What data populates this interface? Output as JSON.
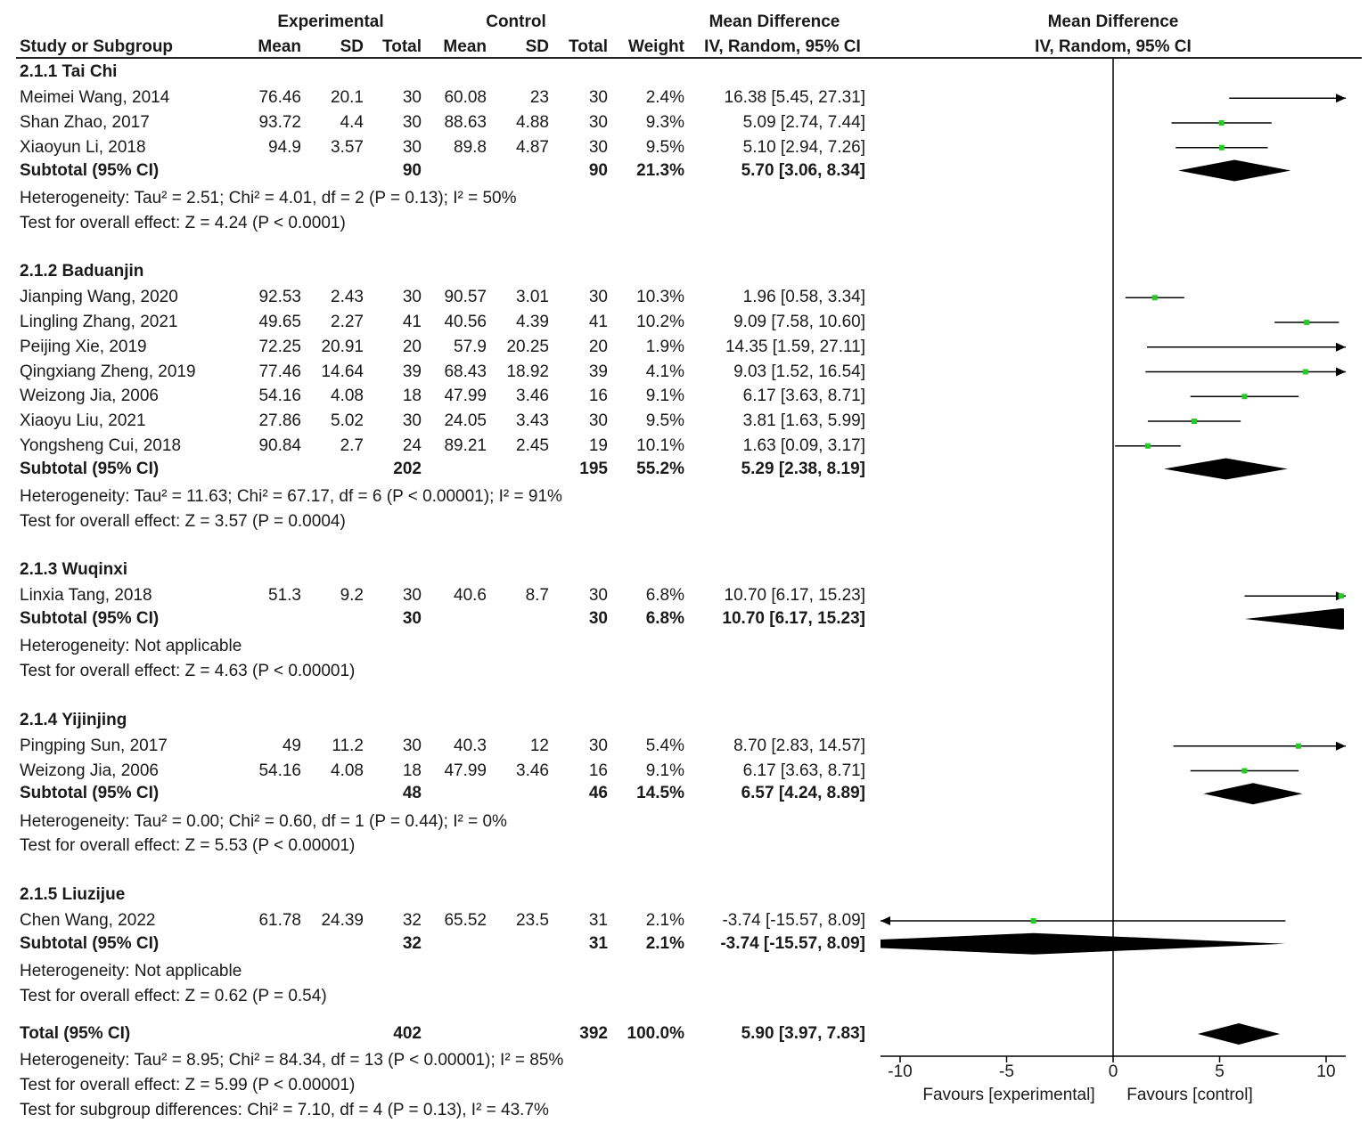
{
  "header": {
    "experimental": "Experimental",
    "control": "Control",
    "md_col": "Mean Difference",
    "md_method": "IV, Random, 95% CI",
    "plot_title": "Mean Difference",
    "plot_method": "IV, Random, 95% CI",
    "study_col": "Study or Subgroup",
    "mean": "Mean",
    "sd": "SD",
    "total": "Total",
    "weight": "Weight"
  },
  "groups": [
    {
      "title": "2.1.1 Tai Chi",
      "studies": [
        {
          "name": "Meimei Wang, 2014",
          "e_mean": "76.46",
          "e_sd": "20.1",
          "e_total": "30",
          "c_mean": "60.08",
          "c_sd": "23",
          "c_total": "30",
          "weight": "2.4%",
          "ci": "16.38 [5.45, 27.31]",
          "md": 16.38,
          "lo": 5.45,
          "hi": 27.31
        },
        {
          "name": "Shan Zhao, 2017",
          "e_mean": "93.72",
          "e_sd": "4.4",
          "e_total": "30",
          "c_mean": "88.63",
          "c_sd": "4.88",
          "c_total": "30",
          "weight": "9.3%",
          "ci": "5.09 [2.74, 7.44]",
          "md": 5.09,
          "lo": 2.74,
          "hi": 7.44
        },
        {
          "name": "Xiaoyun Li, 2018",
          "e_mean": "94.9",
          "e_sd": "3.57",
          "e_total": "30",
          "c_mean": "89.8",
          "c_sd": "4.87",
          "c_total": "30",
          "weight": "9.5%",
          "ci": "5.10 [2.94, 7.26]",
          "md": 5.1,
          "lo": 2.94,
          "hi": 7.26
        }
      ],
      "subtotal": {
        "label": "Subtotal (95% CI)",
        "e_total": "90",
        "c_total": "90",
        "weight": "21.3%",
        "ci": "5.70 [3.06, 8.34]",
        "md": 5.7,
        "lo": 3.06,
        "hi": 8.34
      },
      "heterogeneity": "Heterogeneity: Tau² = 2.51; Chi² = 4.01, df = 2 (P = 0.13); I² = 50%",
      "overall": "Test for overall effect: Z = 4.24 (P < 0.0001)"
    },
    {
      "title": "2.1.2 Baduanjin",
      "studies": [
        {
          "name": "Jianping Wang, 2020",
          "e_mean": "92.53",
          "e_sd": "2.43",
          "e_total": "30",
          "c_mean": "90.57",
          "c_sd": "3.01",
          "c_total": "30",
          "weight": "10.3%",
          "ci": "1.96 [0.58, 3.34]",
          "md": 1.96,
          "lo": 0.58,
          "hi": 3.34
        },
        {
          "name": "Lingling Zhang, 2021",
          "e_mean": "49.65",
          "e_sd": "2.27",
          "e_total": "41",
          "c_mean": "40.56",
          "c_sd": "4.39",
          "c_total": "41",
          "weight": "10.2%",
          "ci": "9.09 [7.58, 10.60]",
          "md": 9.09,
          "lo": 7.58,
          "hi": 10.6
        },
        {
          "name": "Peijing Xie, 2019",
          "e_mean": "72.25",
          "e_sd": "20.91",
          "e_total": "20",
          "c_mean": "57.9",
          "c_sd": "20.25",
          "c_total": "20",
          "weight": "1.9%",
          "ci": "14.35 [1.59, 27.11]",
          "md": 14.35,
          "lo": 1.59,
          "hi": 27.11
        },
        {
          "name": "Qingxiang Zheng, 2019",
          "e_mean": "77.46",
          "e_sd": "14.64",
          "e_total": "39",
          "c_mean": "68.43",
          "c_sd": "18.92",
          "c_total": "39",
          "weight": "4.1%",
          "ci": "9.03 [1.52, 16.54]",
          "md": 9.03,
          "lo": 1.52,
          "hi": 16.54
        },
        {
          "name": "Weizong Jia, 2006",
          "e_mean": "54.16",
          "e_sd": "4.08",
          "e_total": "18",
          "c_mean": "47.99",
          "c_sd": "3.46",
          "c_total": "16",
          "weight": "9.1%",
          "ci": "6.17 [3.63, 8.71]",
          "md": 6.17,
          "lo": 3.63,
          "hi": 8.71
        },
        {
          "name": "Xiaoyu Liu, 2021",
          "e_mean": "27.86",
          "e_sd": "5.02",
          "e_total": "30",
          "c_mean": "24.05",
          "c_sd": "3.43",
          "c_total": "30",
          "weight": "9.5%",
          "ci": "3.81 [1.63, 5.99]",
          "md": 3.81,
          "lo": 1.63,
          "hi": 5.99
        },
        {
          "name": "Yongsheng Cui, 2018",
          "e_mean": "90.84",
          "e_sd": "2.7",
          "e_total": "24",
          "c_mean": "89.21",
          "c_sd": "2.45",
          "c_total": "19",
          "weight": "10.1%",
          "ci": "1.63 [0.09, 3.17]",
          "md": 1.63,
          "lo": 0.09,
          "hi": 3.17
        }
      ],
      "subtotal": {
        "label": "Subtotal (95% CI)",
        "e_total": "202",
        "c_total": "195",
        "weight": "55.2%",
        "ci": "5.29 [2.38, 8.19]",
        "md": 5.29,
        "lo": 2.38,
        "hi": 8.19
      },
      "heterogeneity": "Heterogeneity: Tau² = 11.63; Chi² = 67.17, df = 6 (P < 0.00001); I² = 91%",
      "overall": "Test for overall effect: Z = 3.57 (P = 0.0004)"
    },
    {
      "title": "2.1.3 Wuqinxi",
      "studies": [
        {
          "name": "Linxia Tang, 2018",
          "e_mean": "51.3",
          "e_sd": "9.2",
          "e_total": "30",
          "c_mean": "40.6",
          "c_sd": "8.7",
          "c_total": "30",
          "weight": "6.8%",
          "ci": "10.70 [6.17, 15.23]",
          "md": 10.7,
          "lo": 6.17,
          "hi": 15.23
        }
      ],
      "subtotal": {
        "label": "Subtotal (95% CI)",
        "e_total": "30",
        "c_total": "30",
        "weight": "6.8%",
        "ci": "10.70 [6.17, 15.23]",
        "md": 10.7,
        "lo": 6.17,
        "hi": 15.23
      },
      "heterogeneity": "Heterogeneity: Not applicable",
      "overall": "Test for overall effect: Z = 4.63 (P < 0.00001)"
    },
    {
      "title": "2.1.4 Yijinjing",
      "studies": [
        {
          "name": "Pingping Sun, 2017",
          "e_mean": "49",
          "e_sd": "11.2",
          "e_total": "30",
          "c_mean": "40.3",
          "c_sd": "12",
          "c_total": "30",
          "weight": "5.4%",
          "ci": "8.70 [2.83, 14.57]",
          "md": 8.7,
          "lo": 2.83,
          "hi": 14.57
        },
        {
          "name": "Weizong Jia, 2006",
          "e_mean": "54.16",
          "e_sd": "4.08",
          "e_total": "18",
          "c_mean": "47.99",
          "c_sd": "3.46",
          "c_total": "16",
          "weight": "9.1%",
          "ci": "6.17 [3.63, 8.71]",
          "md": 6.17,
          "lo": 3.63,
          "hi": 8.71
        }
      ],
      "subtotal": {
        "label": "Subtotal (95% CI)",
        "e_total": "48",
        "c_total": "46",
        "weight": "14.5%",
        "ci": "6.57 [4.24, 8.89]",
        "md": 6.57,
        "lo": 4.24,
        "hi": 8.89
      },
      "heterogeneity": "Heterogeneity: Tau² = 0.00; Chi² = 0.60, df = 1 (P = 0.44); I² = 0%",
      "overall": "Test for overall effect: Z = 5.53 (P < 0.00001)"
    },
    {
      "title": "2.1.5 Liuzijue",
      "studies": [
        {
          "name": "Chen Wang, 2022",
          "e_mean": "61.78",
          "e_sd": "24.39",
          "e_total": "32",
          "c_mean": "65.52",
          "c_sd": "23.5",
          "c_total": "31",
          "weight": "2.1%",
          "ci": "-3.74 [-15.57, 8.09]",
          "md": -3.74,
          "lo": -15.57,
          "hi": 8.09
        }
      ],
      "subtotal": {
        "label": "Subtotal (95% CI)",
        "e_total": "32",
        "c_total": "31",
        "weight": "2.1%",
        "ci": "-3.74 [-15.57, 8.09]",
        "md": -3.74,
        "lo": -15.57,
        "hi": 8.09
      },
      "heterogeneity": "Heterogeneity: Not applicable",
      "overall": "Test for overall effect: Z = 0.62 (P = 0.54)"
    }
  ],
  "total": {
    "label": "Total (95% CI)",
    "e_total": "402",
    "c_total": "392",
    "weight": "100.0%",
    "ci": "5.90 [3.97, 7.83]",
    "md": 5.9,
    "lo": 3.97,
    "hi": 7.83
  },
  "footer": {
    "heterogeneity": "Heterogeneity: Tau² = 8.95; Chi² = 84.34, df = 13 (P < 0.00001); I² = 85%",
    "overall": "Test for overall effect: Z = 5.99 (P < 0.00001)",
    "subgroup": "Test for subgroup differences: Chi² = 7.10, df = 4 (P = 0.13), I² = 43.7%"
  },
  "chart_data": {
    "type": "scatter",
    "title": "Mean Difference",
    "subtitle": "IV, Random, 95% CI",
    "xlabel_left": "Favours [experimental]",
    "xlabel_right": "Favours [control]",
    "xlim": [
      -10,
      10
    ],
    "ticks": [
      -10,
      -5,
      0,
      5,
      10
    ],
    "tick_labels": [
      "-10",
      "-5",
      "0",
      "5",
      "10"
    ],
    "colors": {
      "point": "#22cc22",
      "line": "#000000",
      "diamond": "#000000"
    }
  }
}
